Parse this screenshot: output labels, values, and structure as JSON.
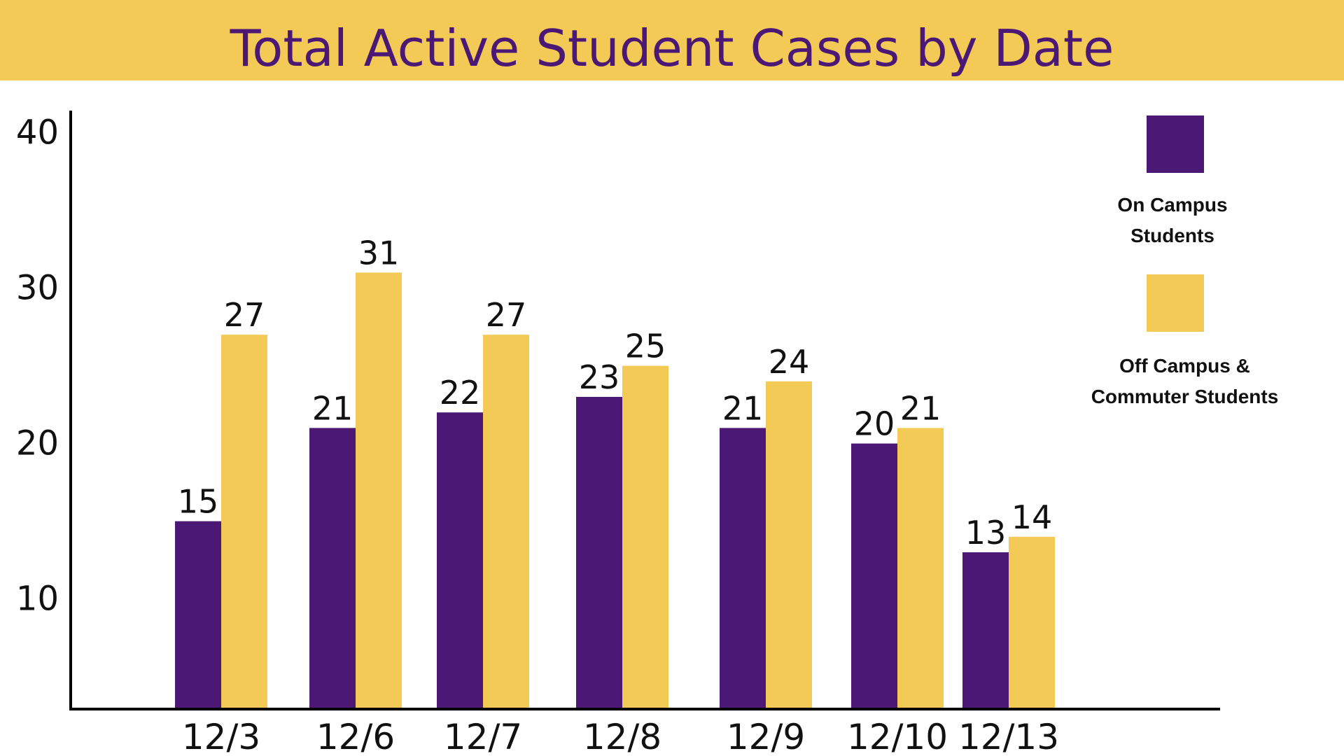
{
  "chart_data": {
    "type": "bar",
    "title": "Total Active Student Cases by Date",
    "categories": [
      "12/3",
      "12/6",
      "12/7",
      "12/8",
      "12/9",
      "12/10",
      "12/13"
    ],
    "series": [
      {
        "name": "On Campus Students",
        "color": "#4b1975",
        "values": [
          15,
          21,
          22,
          23,
          21,
          20,
          13
        ]
      },
      {
        "name": "Off Campus & Commuter Students",
        "color": "#f3ca55",
        "values": [
          27,
          31,
          27,
          25,
          24,
          21,
          14
        ]
      }
    ],
    "y_ticks": [
      10,
      20,
      30,
      40
    ],
    "ylim": [
      3,
      40
    ],
    "grid": false,
    "legend_position": "right",
    "data_labels": true
  },
  "legend": {
    "items": [
      {
        "label_lines": [
          "On Campus",
          "Students"
        ],
        "color": "#4b1975"
      },
      {
        "label_lines": [
          "Off Campus &",
          "Commuter Students"
        ],
        "color": "#f3ca55"
      }
    ]
  }
}
